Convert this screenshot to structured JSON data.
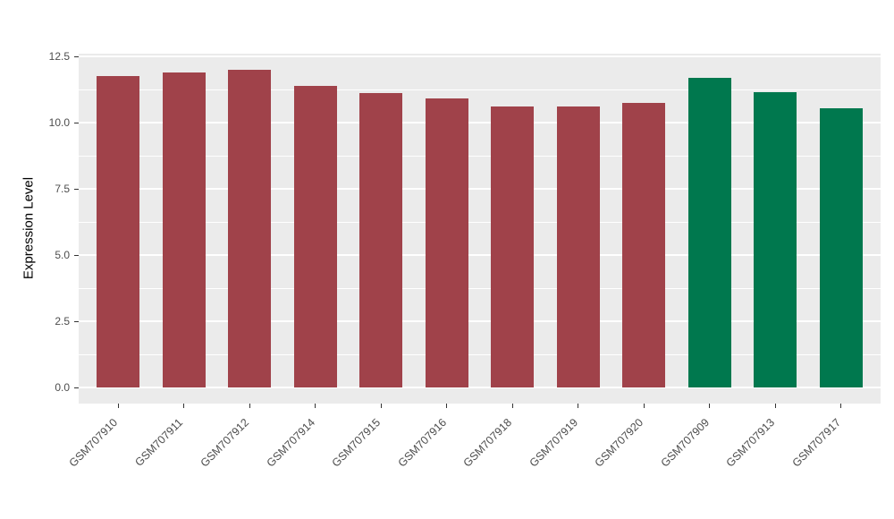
{
  "chart_data": {
    "type": "bar",
    "title": "",
    "xlabel": "",
    "ylabel": "Expression Level",
    "ylim": [
      0,
      12.6
    ],
    "yticks": [
      0,
      2.5,
      5,
      7.5,
      10,
      12.5
    ],
    "ytick_labels": [
      "0.0",
      "2.5",
      "5.0",
      "7.5",
      "10.0",
      "12.5"
    ],
    "minor_ticks": [
      1.25,
      3.75,
      6.25,
      8.75,
      11.25
    ],
    "categories": [
      "GSM707910",
      "GSM707911",
      "GSM707912",
      "GSM707914",
      "GSM707915",
      "GSM707916",
      "GSM707918",
      "GSM707919",
      "GSM707920",
      "GSM707909",
      "GSM707913",
      "GSM707917"
    ],
    "values": [
      11.75,
      11.9,
      12.0,
      11.4,
      11.1,
      10.9,
      10.6,
      10.6,
      10.75,
      11.7,
      11.15,
      10.55
    ],
    "bar_colors": [
      "#A0424A",
      "#A0424A",
      "#A0424A",
      "#A0424A",
      "#A0424A",
      "#A0424A",
      "#A0424A",
      "#A0424A",
      "#A0424A",
      "#00784E",
      "#00784E",
      "#00784E"
    ],
    "colors": {
      "red_group": "#A0424A",
      "green_group": "#00784E",
      "panel_bg": "#EBEBEB",
      "grid": "#FFFFFF",
      "tick": "#333333",
      "axis_text": "#4D4D4D"
    },
    "legend": "none",
    "grid": "on"
  }
}
